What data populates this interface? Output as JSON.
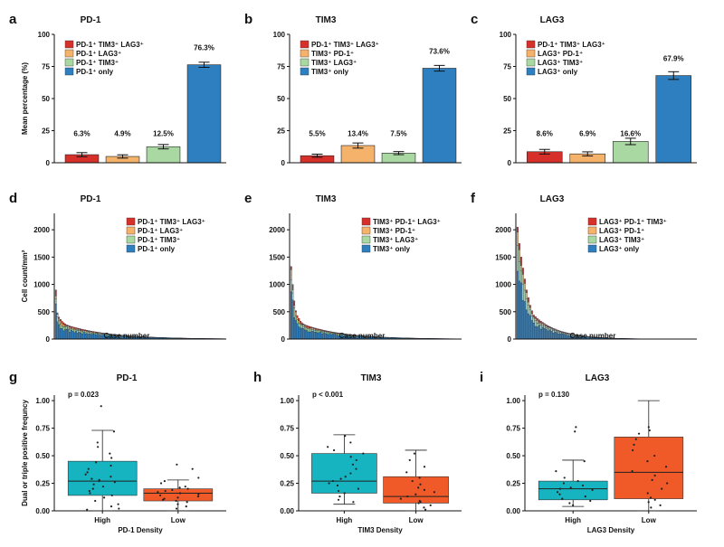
{
  "colors": {
    "red": "#d7302b",
    "orange": "#f5b26b",
    "green": "#a9d8a2",
    "blue": "#2d7fc0",
    "teal": "#16b4c0",
    "vermilion": "#f05a28"
  },
  "chart_data": [
    {
      "id": "a",
      "panel_label": "a",
      "type": "bar",
      "title": "PD-1",
      "ylabel": "Mean percentage (%)",
      "ylim": [
        0,
        100
      ],
      "yticks": [
        0,
        25,
        50,
        75,
        100
      ],
      "categories": [
        "PD-1⁺ TIM3⁺ LAG3⁺",
        "PD-1⁺ LAG3⁺",
        "PD-1⁺ TIM3⁺",
        "PD-1⁺ only"
      ],
      "values": [
        6.3,
        4.9,
        12.5,
        76.3
      ],
      "errors": [
        1.6,
        1.3,
        1.7,
        2.0
      ],
      "labels": [
        "6.3%",
        "4.9%",
        "12.5%",
        "76.3%"
      ],
      "legend": [
        "PD-1⁺ TIM3⁺ LAG3⁺",
        "PD-1⁺ LAG3⁺",
        "PD-1⁺ TIM3⁺",
        "PD-1⁺ only"
      ]
    },
    {
      "id": "b",
      "panel_label": "b",
      "type": "bar",
      "title": "TIM3",
      "ylabel": "",
      "ylim": [
        0,
        100
      ],
      "yticks": [
        0,
        25,
        50,
        75,
        100
      ],
      "categories": [
        "PD-1⁺ TIM3⁺ LAG3⁺",
        "TIM3⁺ PD-1⁺",
        "TIM3⁺ LAG3⁺",
        "TIM3⁺ only"
      ],
      "values": [
        5.5,
        13.4,
        7.5,
        73.6
      ],
      "errors": [
        1.2,
        2.0,
        1.2,
        2.2
      ],
      "labels": [
        "5.5%",
        "13.4%",
        "7.5%",
        "73.6%"
      ],
      "legend": [
        "PD-1⁺ TIM3⁺ LAG3⁺",
        "TIM3⁺ PD-1⁺",
        "TIM3⁺ LAG3⁺",
        "TIM3⁺ only"
      ]
    },
    {
      "id": "c",
      "panel_label": "c",
      "type": "bar",
      "title": "LAG3",
      "ylabel": "",
      "ylim": [
        0,
        100
      ],
      "yticks": [
        0,
        25,
        50,
        75,
        100
      ],
      "categories": [
        "PD-1⁺ TIM3⁺ LAG3⁺",
        "LAG3⁺ PD-1⁺",
        "LAG3⁺ TIM3⁺",
        "LAG3⁺ only"
      ],
      "values": [
        8.6,
        6.9,
        16.6,
        67.9
      ],
      "errors": [
        1.8,
        1.6,
        2.5,
        3.0
      ],
      "labels": [
        "8.6%",
        "6.9%",
        "16.6%",
        "67.9%"
      ],
      "legend": [
        "PD-1⁺ TIM3⁺ LAG3⁺",
        "LAG3⁺ PD-1⁺",
        "LAG3⁺ TIM3⁺",
        "LAG3⁺ only"
      ]
    },
    {
      "id": "d",
      "panel_label": "d",
      "type": "bar",
      "stacked": true,
      "title": "PD-1",
      "ylabel": "Cell count/mm²",
      "xlabel": "Case number",
      "ylim": [
        0,
        2300
      ],
      "yticks": [
        0,
        500,
        1000,
        1500,
        2000
      ],
      "n_cases": 110,
      "first_values": [
        900,
        480,
        400,
        360,
        330,
        300,
        280,
        260,
        250,
        240
      ],
      "decay": 0.965,
      "min_value": 4,
      "legend": [
        "PD-1⁺ TIM3⁺ LAG3⁺",
        "PD-1⁺ LAG3⁺",
        "PD-1⁺ TIM3⁺",
        "PD-1⁺ only"
      ]
    },
    {
      "id": "e",
      "panel_label": "e",
      "type": "bar",
      "stacked": true,
      "title": "TIM3",
      "ylabel": "",
      "xlabel": "Case number",
      "ylim": [
        0,
        2300
      ],
      "yticks": [
        0,
        500,
        1000,
        1500,
        2000
      ],
      "n_cases": 110,
      "first_values": [
        1330,
        1000,
        700,
        520,
        430,
        380,
        330,
        300,
        280,
        260
      ],
      "decay": 0.962,
      "min_value": 4,
      "legend": [
        "TIM3⁺ PD-1⁺ LAG3⁺",
        "TIM3⁺ PD-1⁺",
        "TIM3⁺ LAG3⁺",
        "TIM3⁺ only"
      ]
    },
    {
      "id": "f",
      "panel_label": "f",
      "type": "bar",
      "stacked": true,
      "title": "LAG3",
      "ylabel": "",
      "xlabel": "Case number",
      "ylim": [
        0,
        2300
      ],
      "yticks": [
        0,
        500,
        1000,
        1500,
        2000
      ],
      "n_cases": 100,
      "first_values": [
        2050,
        1750,
        1500,
        1300,
        1100,
        900,
        760,
        620,
        520,
        440
      ],
      "decay": 0.93,
      "min_value": 3,
      "legend": [
        "LAG3⁺ PD-1⁺ TIM3⁺",
        "LAG3⁺ PD-1⁺",
        "LAG3⁺ TIM3⁺",
        "LAG3⁺ only"
      ]
    },
    {
      "id": "g",
      "panel_label": "g",
      "type": "box",
      "title": "PD-1",
      "ylabel": "Dual or triple positive frequncy",
      "xlabel": "PD-1 Density",
      "ylim": [
        0,
        1.05
      ],
      "yticks": [
        0,
        0.25,
        0.5,
        0.75,
        1.0
      ],
      "ytick_labels": [
        "0.00",
        "0.25",
        "0.50",
        "0.75",
        "1.00"
      ],
      "categories": [
        "High",
        "Low"
      ],
      "pvalue": "p = 0.023",
      "boxes": [
        {
          "min": 0.0,
          "q1": 0.14,
          "median": 0.27,
          "q3": 0.45,
          "max": 0.73,
          "points": [
            0.95,
            0.72,
            0.62,
            0.58,
            0.52,
            0.48,
            0.44,
            0.41,
            0.38,
            0.35,
            0.33,
            0.31,
            0.29,
            0.28,
            0.27,
            0.26,
            0.24,
            0.22,
            0.2,
            0.18,
            0.16,
            0.14,
            0.12,
            0.09,
            0.06,
            0.04,
            0.02,
            0.01
          ]
        },
        {
          "min": 0.0,
          "q1": 0.09,
          "median": 0.16,
          "q3": 0.2,
          "max": 0.28,
          "points": [
            0.42,
            0.38,
            0.3,
            0.27,
            0.25,
            0.22,
            0.21,
            0.2,
            0.19,
            0.18,
            0.17,
            0.16,
            0.15,
            0.14,
            0.13,
            0.12,
            0.11,
            0.1,
            0.09,
            0.08,
            0.06,
            0.04,
            0.02
          ]
        }
      ]
    },
    {
      "id": "h",
      "panel_label": "h",
      "type": "box",
      "title": "TIM3",
      "ylabel": "",
      "xlabel": "TIM3 Density",
      "ylim": [
        0,
        1.05
      ],
      "yticks": [
        0,
        0.25,
        0.5,
        0.75,
        1.0
      ],
      "ytick_labels": [
        "0.00",
        "0.25",
        "0.50",
        "0.75",
        "1.00"
      ],
      "categories": [
        "High",
        "Low"
      ],
      "pvalue": "p < 0.001",
      "boxes": [
        {
          "min": 0.06,
          "q1": 0.16,
          "median": 0.27,
          "q3": 0.52,
          "max": 0.69,
          "points": [
            0.68,
            0.62,
            0.58,
            0.55,
            0.52,
            0.49,
            0.46,
            0.42,
            0.38,
            0.34,
            0.31,
            0.29,
            0.27,
            0.25,
            0.23,
            0.2,
            0.18,
            0.16,
            0.13,
            0.1,
            0.08
          ]
        },
        {
          "min": 0.0,
          "q1": 0.07,
          "median": 0.13,
          "q3": 0.31,
          "max": 0.55,
          "points": [
            0.52,
            0.46,
            0.4,
            0.35,
            0.3,
            0.27,
            0.24,
            0.21,
            0.19,
            0.17,
            0.15,
            0.13,
            0.11,
            0.09,
            0.08,
            0.07,
            0.05,
            0.03,
            0.01
          ]
        }
      ]
    },
    {
      "id": "i",
      "panel_label": "i",
      "type": "box",
      "title": "LAG3",
      "ylabel": "",
      "xlabel": "LAG3 Density",
      "ylim": [
        0,
        1.05
      ],
      "yticks": [
        0,
        0.25,
        0.5,
        0.75,
        1.0
      ],
      "ytick_labels": [
        "0.00",
        "0.25",
        "0.50",
        "0.75",
        "1.00"
      ],
      "categories": [
        "High",
        "Low"
      ],
      "pvalue": "p = 0.130",
      "boxes": [
        {
          "min": 0.04,
          "q1": 0.1,
          "median": 0.2,
          "q3": 0.27,
          "max": 0.46,
          "points": [
            0.76,
            0.72,
            0.45,
            0.36,
            0.3,
            0.27,
            0.25,
            0.23,
            0.21,
            0.2,
            0.19,
            0.17,
            0.15,
            0.13,
            0.11,
            0.09,
            0.07,
            0.05
          ]
        },
        {
          "min": 0.0,
          "q1": 0.11,
          "median": 0.35,
          "q3": 0.67,
          "max": 1.0,
          "points": [
            0.76,
            0.73,
            0.7,
            0.65,
            0.6,
            0.55,
            0.5,
            0.45,
            0.4,
            0.36,
            0.32,
            0.28,
            0.25,
            0.2,
            0.16,
            0.12,
            0.1,
            0.08,
            0.05,
            0.03
          ]
        }
      ]
    }
  ]
}
